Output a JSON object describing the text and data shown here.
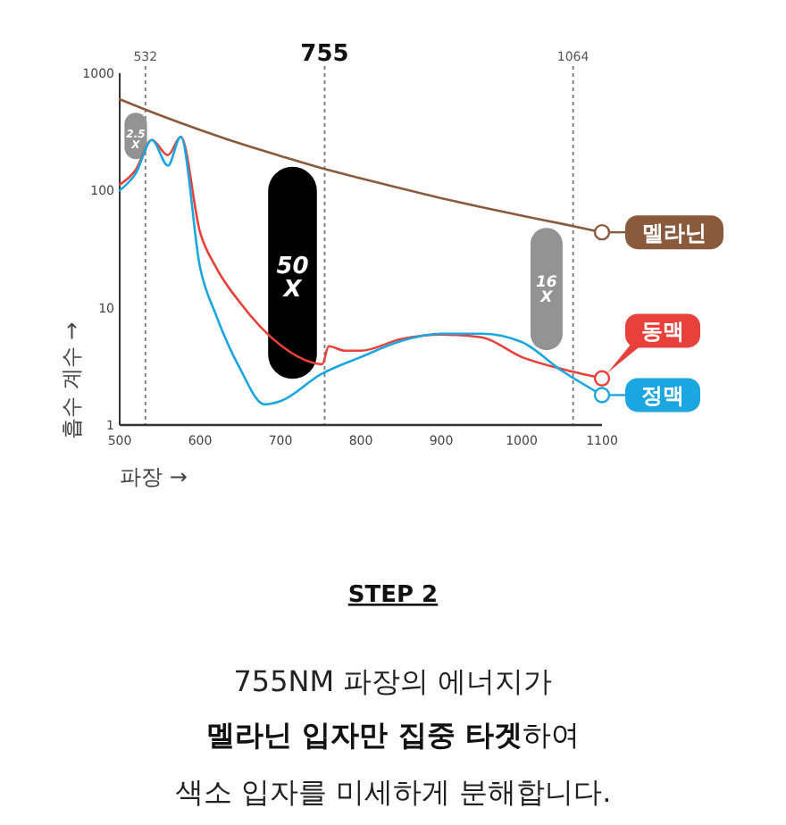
{
  "chart_data": {
    "type": "line",
    "ylabel": "흡수 계수 →",
    "xlabel": "파장 →",
    "log": "y",
    "xlim": [
      500,
      1100
    ],
    "ylim": [
      1,
      1000
    ],
    "xticks": [
      500,
      600,
      700,
      800,
      900,
      1000,
      1100
    ],
    "yticks": [
      1,
      10,
      100,
      1000
    ],
    "grid": false,
    "line_style": "solid",
    "series": [
      {
        "name": "멜라닌",
        "color": "#8a5a3c",
        "x": [
          500,
          550,
          600,
          650,
          700,
          750,
          800,
          850,
          900,
          950,
          1000,
          1050,
          1100
        ],
        "values": [
          600,
          438,
          328,
          251,
          197,
          156,
          127,
          104,
          86,
          72,
          61,
          52,
          44
        ]
      },
      {
        "name": "동맥",
        "color": "#e8403a",
        "x": [
          500,
          520,
          540,
          560,
          576,
          600,
          620,
          650,
          700,
          740,
          752,
          760,
          780,
          800,
          850,
          900,
          950,
          1000,
          1050,
          1100
        ],
        "values": [
          112,
          150,
          270,
          200,
          287,
          44,
          22,
          11,
          4.8,
          3.4,
          3.3,
          4.7,
          4.3,
          4.3,
          5.4,
          5.9,
          5.6,
          3.8,
          3.0,
          2.5
        ]
      },
      {
        "name": "정맥",
        "color": "#1aa6e0",
        "x": [
          500,
          520,
          540,
          560,
          576,
          600,
          620,
          650,
          680,
          700,
          750,
          800,
          850,
          900,
          950,
          1000,
          1050,
          1100
        ],
        "values": [
          100,
          140,
          270,
          163,
          287,
          22,
          8.6,
          3.0,
          1.5,
          1.6,
          2.7,
          3.8,
          5.2,
          6.0,
          6.0,
          5.1,
          2.9,
          1.8
        ]
      }
    ],
    "ref_lines": [
      {
        "axis": "x",
        "value": 532,
        "label": "532",
        "line_style": "dotted"
      },
      {
        "axis": "x",
        "value": 755,
        "label": "755",
        "line_style": "dotted"
      },
      {
        "axis": "x",
        "value": 1064,
        "label": "1064",
        "line_style": "dotted"
      }
    ],
    "legend": "right",
    "annotations": [
      "2.5 X",
      "50 X",
      "16 X",
      "STEP 2",
      "755NM 파장의 에너지가",
      "멜라닌 입자만 집중 타겟",
      "하여",
      "색소 입자를 미세하게 분해합니다."
    ]
  }
}
